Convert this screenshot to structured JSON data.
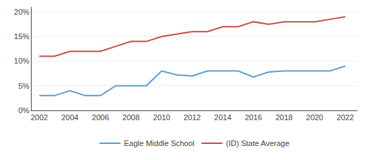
{
  "chart_data": {
    "type": "line",
    "x": [
      2002,
      2003,
      2004,
      2005,
      2006,
      2007,
      2008,
      2009,
      2010,
      2011,
      2012,
      2013,
      2014,
      2015,
      2016,
      2017,
      2018,
      2019,
      2020,
      2021,
      2022
    ],
    "series": [
      {
        "name": "Eagle Middle School",
        "color": "#5b9bd5",
        "values": [
          0.03,
          0.03,
          0.04,
          0.03,
          0.03,
          0.05,
          0.05,
          0.05,
          0.08,
          0.072,
          0.07,
          0.08,
          0.08,
          0.08,
          0.068,
          0.078,
          0.08,
          0.08,
          0.08,
          0.08,
          0.09
        ]
      },
      {
        "name": "(ID) State Average",
        "color": "#c0504d",
        "values": [
          0.11,
          0.11,
          0.12,
          0.12,
          0.12,
          0.13,
          0.14,
          0.14,
          0.15,
          0.155,
          0.16,
          0.16,
          0.17,
          0.17,
          0.18,
          0.175,
          0.18,
          0.18,
          0.18,
          0.185,
          0.19
        ]
      }
    ],
    "xlim": [
      2001.5,
      2022.8
    ],
    "xticks": [
      2002,
      2004,
      2006,
      2008,
      2010,
      2012,
      2014,
      2016,
      2018,
      2020,
      2022
    ],
    "ylim": [
      0,
      0.21
    ],
    "yticks": [
      {
        "value": 0.0,
        "label": "0%"
      },
      {
        "value": 0.05,
        "label": "5%"
      },
      {
        "value": 0.1,
        "label": "10%"
      },
      {
        "value": 0.15,
        "label": "15%"
      },
      {
        "value": 0.2,
        "label": "20%"
      }
    ],
    "grid": "y",
    "legend": "bottom"
  }
}
